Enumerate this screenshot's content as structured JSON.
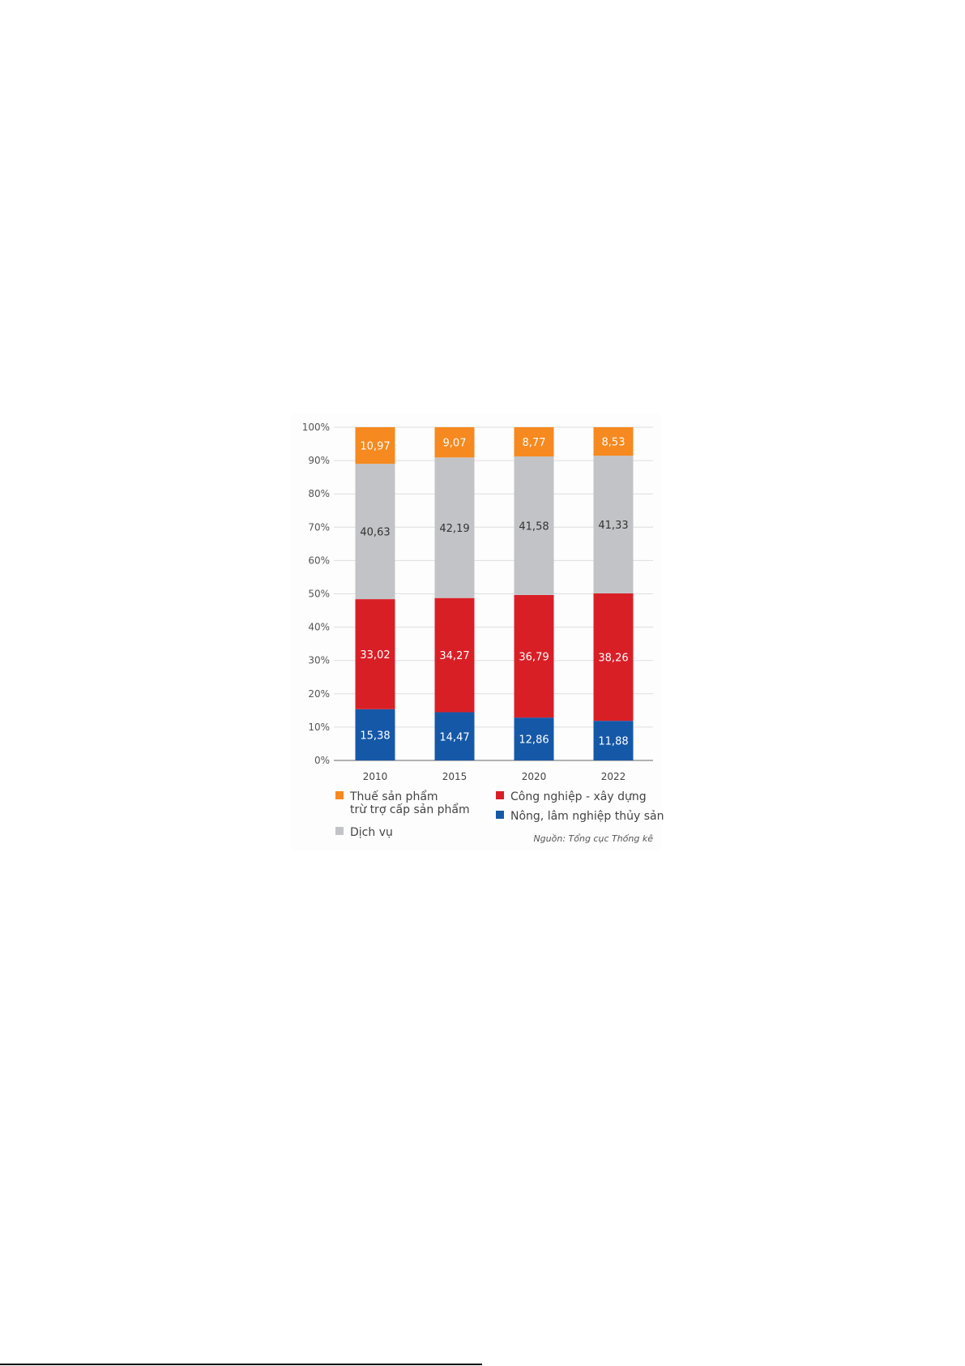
{
  "chart_data": {
    "type": "bar",
    "stacked": true,
    "categories": [
      "2010",
      "2015",
      "2020",
      "2022"
    ],
    "series": [
      {
        "name": "Nông, lâm nghiệp thủy sản",
        "color": "#1558a8",
        "values": [
          15.38,
          14.47,
          12.86,
          11.88
        ],
        "labels": [
          "15,38",
          "14,47",
          "12,86",
          "11,88"
        ]
      },
      {
        "name": "Công nghiệp - xây dựng",
        "color": "#d91f26",
        "values": [
          33.02,
          34.27,
          36.79,
          38.26
        ],
        "labels": [
          "33,02",
          "34,27",
          "36,79",
          "38,26"
        ]
      },
      {
        "name": "Dịch vụ",
        "color": "#c2c3c6",
        "values": [
          40.63,
          42.19,
          41.58,
          41.33
        ],
        "labels": [
          "40,63",
          "42,19",
          "41,58",
          "41,33"
        ]
      },
      {
        "name": "Thuế sản phẩm trừ trợ cấp sản phẩm",
        "color": "#f6891f",
        "values": [
          10.97,
          9.07,
          8.77,
          8.53
        ],
        "labels": [
          "10,97",
          "9,07",
          "8,77",
          "8,53"
        ]
      }
    ],
    "yticks": [
      "0%",
      "10%",
      "20%",
      "30%",
      "40%",
      "50%",
      "60%",
      "70%",
      "80%",
      "90%",
      "100%"
    ],
    "ylim": [
      0,
      100
    ],
    "grid": true,
    "legend": {
      "placement": "bottom",
      "items": [
        {
          "line1": "Thuế sản phẩm",
          "line2": "trừ trợ cấp sản phẩm",
          "color": "#f6891f"
        },
        {
          "line1": "Công nghiệp - xây dựng",
          "color": "#d91f26"
        },
        {
          "line1": "Nông, lâm nghiệp thủy sản",
          "color": "#1558a8"
        },
        {
          "line1": "Dịch vụ",
          "color": "#c2c3c6"
        }
      ]
    },
    "source": "Nguồn: Tổng cục Thống kê"
  }
}
